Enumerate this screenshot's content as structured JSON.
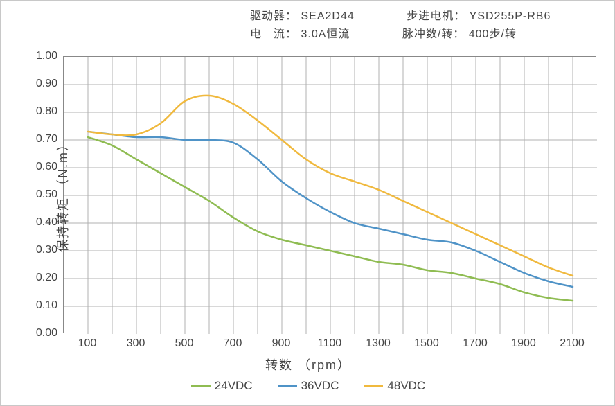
{
  "header": {
    "driver_label": "驱动器：",
    "driver_value": "SEA2D44",
    "motor_label": "步进电机：",
    "motor_value": "YSD255P-RB6",
    "current_label": "电　流：",
    "current_value": "3.0A恒流",
    "pulse_label": "脉冲数/转：",
    "pulse_value": "400步/转"
  },
  "chart": {
    "type": "line",
    "plot_bg": "#ffffff",
    "figure_border": "#c8c8c8",
    "plot_border": "#888888",
    "grid_color": "#b0b0b0",
    "grid_width": 1,
    "x": {
      "min": 0,
      "max": 2200,
      "tick_start": 100,
      "tick_step": 200,
      "tick_end": 2100,
      "grid_step": 100,
      "label": "转数 （rpm）"
    },
    "y": {
      "min": 0.0,
      "max": 1.0,
      "tick_step": 0.1,
      "label": "保持转矩 （N.m）"
    },
    "tick_font_size": 16,
    "label_font_size": 18,
    "line_width": 2.5,
    "series": [
      {
        "name": "24VDC",
        "color": "#8fbc52",
        "points": [
          [
            100,
            0.71
          ],
          [
            200,
            0.68
          ],
          [
            300,
            0.63
          ],
          [
            400,
            0.58
          ],
          [
            500,
            0.53
          ],
          [
            600,
            0.48
          ],
          [
            700,
            0.42
          ],
          [
            800,
            0.37
          ],
          [
            900,
            0.34
          ],
          [
            1000,
            0.32
          ],
          [
            1100,
            0.3
          ],
          [
            1200,
            0.28
          ],
          [
            1300,
            0.26
          ],
          [
            1400,
            0.25
          ],
          [
            1500,
            0.23
          ],
          [
            1600,
            0.22
          ],
          [
            1700,
            0.2
          ],
          [
            1800,
            0.18
          ],
          [
            1900,
            0.15
          ],
          [
            2000,
            0.13
          ],
          [
            2100,
            0.12
          ]
        ]
      },
      {
        "name": "36VDC",
        "color": "#4f93c7",
        "points": [
          [
            100,
            0.73
          ],
          [
            200,
            0.72
          ],
          [
            300,
            0.71
          ],
          [
            400,
            0.71
          ],
          [
            500,
            0.7
          ],
          [
            600,
            0.7
          ],
          [
            700,
            0.69
          ],
          [
            800,
            0.63
          ],
          [
            900,
            0.55
          ],
          [
            1000,
            0.49
          ],
          [
            1100,
            0.44
          ],
          [
            1200,
            0.4
          ],
          [
            1300,
            0.38
          ],
          [
            1400,
            0.36
          ],
          [
            1500,
            0.34
          ],
          [
            1600,
            0.33
          ],
          [
            1700,
            0.3
          ],
          [
            1800,
            0.26
          ],
          [
            1900,
            0.22
          ],
          [
            2000,
            0.19
          ],
          [
            2100,
            0.17
          ]
        ]
      },
      {
        "name": "48VDC",
        "color": "#f0b93e",
        "points": [
          [
            100,
            0.73
          ],
          [
            200,
            0.72
          ],
          [
            300,
            0.72
          ],
          [
            400,
            0.76
          ],
          [
            500,
            0.84
          ],
          [
            600,
            0.86
          ],
          [
            700,
            0.83
          ],
          [
            800,
            0.77
          ],
          [
            900,
            0.7
          ],
          [
            1000,
            0.63
          ],
          [
            1100,
            0.58
          ],
          [
            1200,
            0.55
          ],
          [
            1300,
            0.52
          ],
          [
            1400,
            0.48
          ],
          [
            1500,
            0.44
          ],
          [
            1600,
            0.4
          ],
          [
            1700,
            0.36
          ],
          [
            1800,
            0.32
          ],
          [
            1900,
            0.28
          ],
          [
            2000,
            0.24
          ],
          [
            2100,
            0.21
          ]
        ]
      }
    ],
    "legend": {
      "label_fontsize": 17
    }
  }
}
